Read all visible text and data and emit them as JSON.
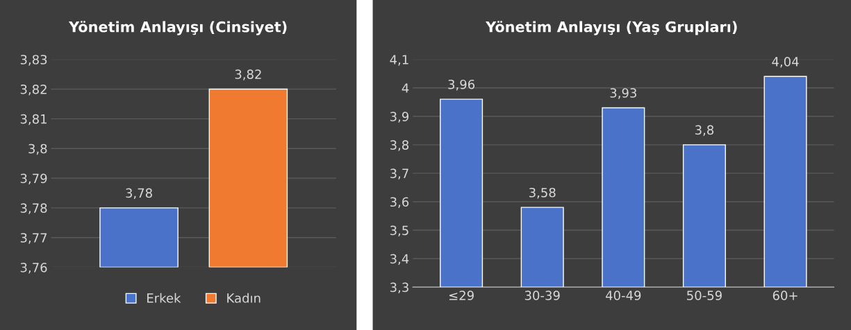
{
  "chart_data": [
    {
      "type": "bar",
      "title": "Yönetim Anlayışı (Cinsiyet)",
      "categories": [
        null
      ],
      "series": [
        {
          "name": "Erkek",
          "color": "#4a72c8",
          "values": [
            3.78
          ],
          "value_labels": [
            "3,78"
          ]
        },
        {
          "name": "Kadın",
          "color": "#f07a30",
          "values": [
            3.82
          ],
          "value_labels": [
            "3,82"
          ]
        }
      ],
      "ylim": [
        3.76,
        3.83
      ],
      "yticks": [
        {
          "value": 3.76,
          "label": "3,76"
        },
        {
          "value": 3.77,
          "label": "3,77"
        },
        {
          "value": 3.78,
          "label": "3,78"
        },
        {
          "value": 3.79,
          "label": "3,79"
        },
        {
          "value": 3.8,
          "label": "3,8"
        },
        {
          "value": 3.81,
          "label": "3,81"
        },
        {
          "value": 3.82,
          "label": "3,82"
        },
        {
          "value": 3.83,
          "label": "3,83"
        }
      ],
      "grid": "y",
      "legend": "bottom"
    },
    {
      "type": "bar",
      "title": "Yönetim Anlayışı (Yaş Grupları)",
      "categories": [
        "≤29",
        "30-39",
        "40-49",
        "50-59",
        "60+"
      ],
      "series": [
        {
          "color": "#4a72c8",
          "values": [
            3.96,
            3.58,
            3.93,
            3.8,
            4.04
          ],
          "value_labels": [
            "3,96",
            "3,58",
            "3,93",
            "3,8",
            "4,04"
          ]
        }
      ],
      "ylim": [
        3.3,
        4.1
      ],
      "yticks": [
        {
          "value": 3.3,
          "label": "3,3"
        },
        {
          "value": 3.4,
          "label": "3,4"
        },
        {
          "value": 3.5,
          "label": "3,5"
        },
        {
          "value": 3.6,
          "label": "3,6"
        },
        {
          "value": 3.7,
          "label": "3,7"
        },
        {
          "value": 3.8,
          "label": "3,8"
        },
        {
          "value": 3.9,
          "label": "3,9"
        },
        4,
        {
          "value": 4.1,
          "label": "4,1"
        }
      ],
      "grid": "y",
      "legend": false
    }
  ]
}
